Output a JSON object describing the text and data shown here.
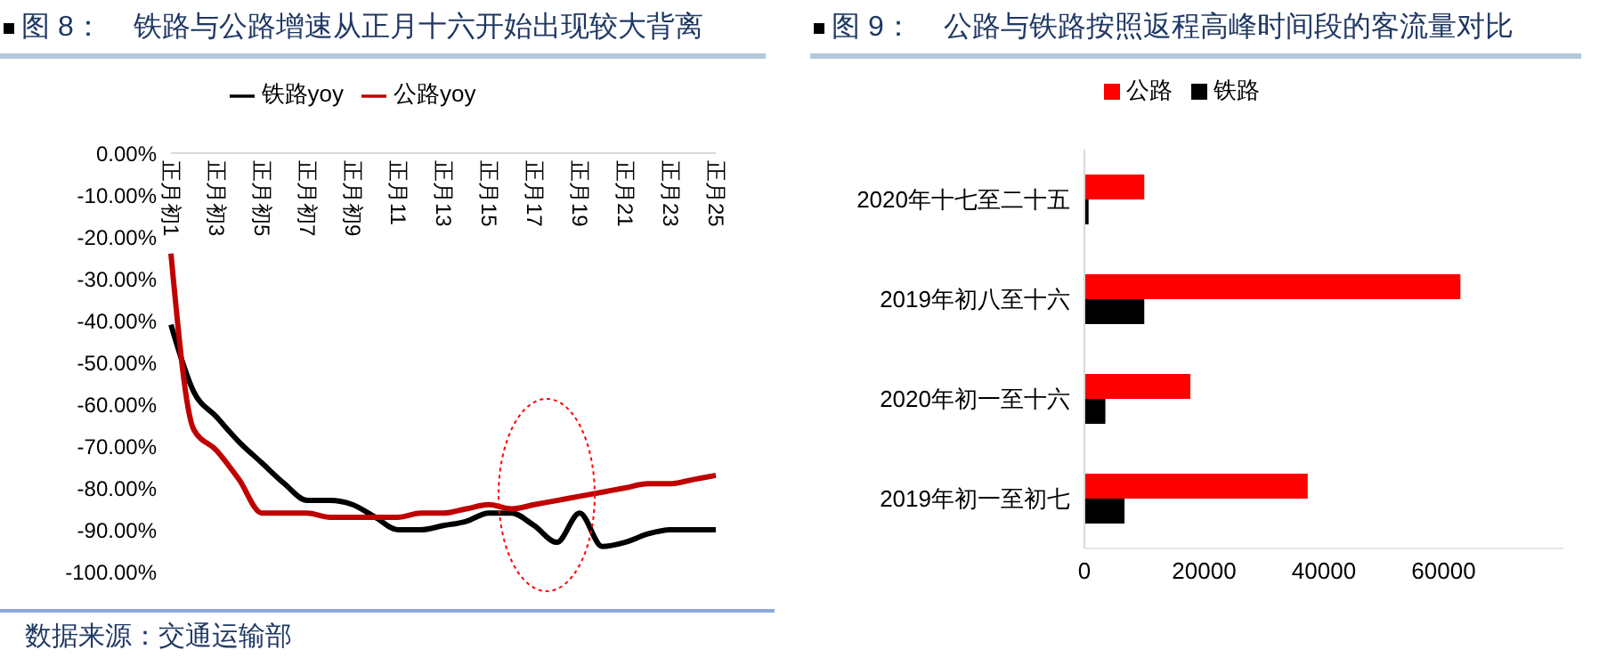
{
  "chart_data": [
    {
      "type": "line",
      "title": "图 8：    铁路与公路增速从正月十六开始出现较大背离",
      "categories": [
        "正月初1",
        null,
        "正月初3",
        null,
        "正月初5",
        null,
        "正月初7",
        null,
        "正月初9",
        null,
        "正月11",
        null,
        "正月13",
        null,
        "正月15",
        null,
        "正月17",
        null,
        "正月19",
        null,
        "正月21",
        null,
        "正月23",
        null,
        "正月25"
      ],
      "series": [
        {
          "name": "铁路yoy",
          "color": "#000000",
          "values": [
            -41,
            -57,
            -63,
            -69,
            -74,
            -79,
            -83,
            -83,
            -84,
            -87,
            -90,
            -90,
            -89,
            -88,
            -86,
            -86,
            -89,
            -93,
            -86,
            -94,
            -93,
            -91,
            -90,
            -90,
            -90
          ]
        },
        {
          "name": "公路yoy",
          "color": "#c00000",
          "values": [
            -24,
            -66,
            -71,
            -78,
            -86,
            -86,
            -86,
            -87,
            -87,
            -87,
            -87,
            -86,
            -86,
            -85,
            -84,
            -85,
            -84,
            -83,
            -82,
            -81,
            -80,
            -79,
            -79,
            -78,
            -77
          ]
        }
      ],
      "ylim": [
        -100,
        0
      ],
      "yticks": [
        {
          "value": 0,
          "label": "0.00%"
        },
        {
          "value": -10,
          "label": "-10.00%"
        },
        {
          "value": -20,
          "label": "-20.00%"
        },
        {
          "value": -30,
          "label": "-30.00%"
        },
        {
          "value": -40,
          "label": "-40.00%"
        },
        {
          "value": -50,
          "label": "-50.00%"
        },
        {
          "value": -60,
          "label": "-60.00%"
        },
        {
          "value": -70,
          "label": "-70.00%"
        },
        {
          "value": -80,
          "label": "-80.00%"
        },
        {
          "value": -90,
          "label": "-90.00%"
        },
        {
          "value": -100,
          "label": "-100.00%"
        }
      ],
      "legend": "top",
      "annotations": [
        "数据来源：交通运输部"
      ]
    },
    {
      "type": "bar",
      "orientation": "horizontal",
      "title": "图 9：    公路与铁路按照返程高峰时间段的客流量对比",
      "categories": [
        "2020年十七至二十五",
        "2019年初八至十六",
        "2020年初一至十六",
        "2019年初一至初七"
      ],
      "series": [
        {
          "name": "公路",
          "color": "#ff0000",
          "values": [
            10000,
            62800,
            17700,
            37300
          ]
        },
        {
          "name": "铁路",
          "color": "#000000",
          "values": [
            700,
            10000,
            3500,
            6700
          ]
        }
      ],
      "xlim": [
        0,
        80000
      ],
      "xticks": [
        0,
        20000,
        40000,
        60000
      ],
      "legend": "top"
    }
  ]
}
